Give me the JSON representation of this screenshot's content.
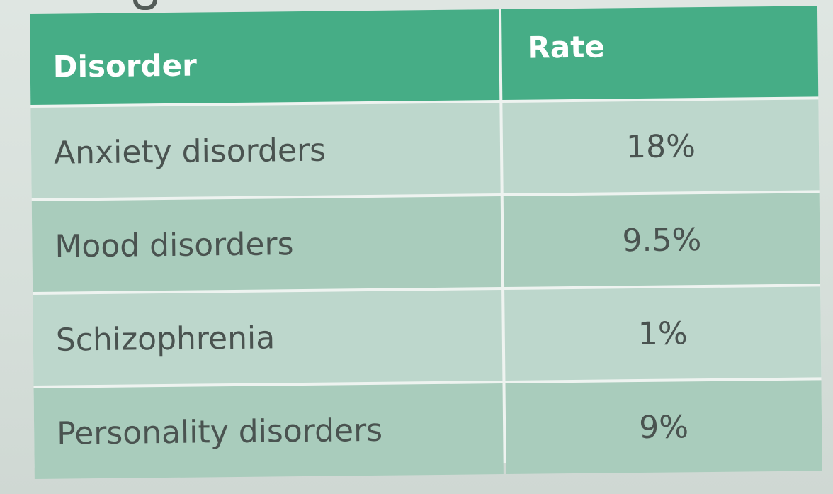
{
  "table": {
    "headers": [
      "Disorder",
      "Rate"
    ],
    "rows": [
      {
        "disorder": "Anxiety disorders",
        "rate": "18%"
      },
      {
        "disorder": "Mood disorders",
        "rate": "9.5%"
      },
      {
        "disorder": "Schizophrenia",
        "rate": "1%"
      },
      {
        "disorder": "Personality disorders",
        "rate": "9%"
      }
    ]
  },
  "colors": {
    "header": "#46ad86",
    "row_light": "#bdd7cc",
    "row_mid": "#a9ccbc",
    "text": "#4a5350"
  }
}
